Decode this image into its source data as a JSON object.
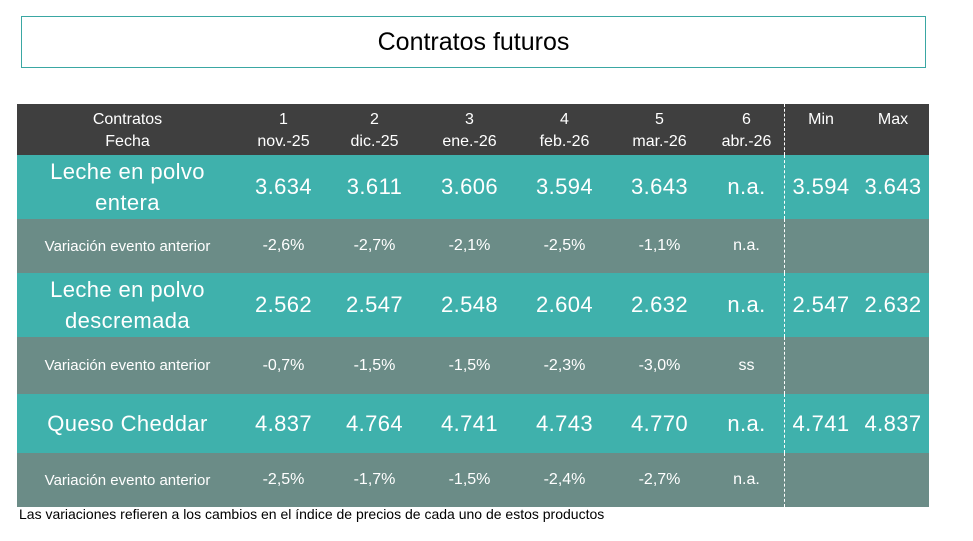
{
  "title": "Contratos futuros",
  "header": {
    "row1_label": "Contratos",
    "row2_label": "Fecha",
    "columns": [
      {
        "num": "1",
        "date": "nov.-25"
      },
      {
        "num": "2",
        "date": "dic.-25"
      },
      {
        "num": "3",
        "date": "ene.-26"
      },
      {
        "num": "4",
        "date": "feb.-26"
      },
      {
        "num": "5",
        "date": "mar.-26"
      },
      {
        "num": "6",
        "date": "abr.-26"
      }
    ],
    "min_label": "Min",
    "max_label": "Max"
  },
  "rows": [
    {
      "product": "Leche en polvo entera",
      "values": [
        "3.634",
        "3.611",
        "3.606",
        "3.594",
        "3.643",
        "n.a."
      ],
      "min": "3.594",
      "max": "3.643",
      "variation_label": "Variación evento anterior",
      "variations": [
        "-2,6%",
        "-2,7%",
        "-2,1%",
        "-2,5%",
        "-1,1%",
        "n.a."
      ]
    },
    {
      "product": "Leche en polvo descremada",
      "values": [
        "2.562",
        "2.547",
        "2.548",
        "2.604",
        "2.632",
        "n.a."
      ],
      "min": "2.547",
      "max": "2.632",
      "variation_label": "Variación evento anterior",
      "variations": [
        "-0,7%",
        "-1,5%",
        "-1,5%",
        "-2,3%",
        "-3,0%",
        "ss"
      ]
    },
    {
      "product": "Queso Cheddar",
      "values": [
        "4.837",
        "4.764",
        "4.741",
        "4.743",
        "4.770",
        "n.a."
      ],
      "min": "4.741",
      "max": "4.837",
      "variation_label": "Variación evento anterior",
      "variations": [
        "-2,5%",
        "-1,7%",
        "-1,5%",
        "-2,4%",
        "-2,7%",
        "n.a."
      ]
    }
  ],
  "footnote": "Las variaciones refieren a los cambios en el índice de precios de cada uno de estos productos",
  "colors": {
    "header_bg": "#3f3f3f",
    "product_bg": "#3fb1ac",
    "variation_bg": "#6b8c87",
    "title_border": "#3aa7a3"
  }
}
